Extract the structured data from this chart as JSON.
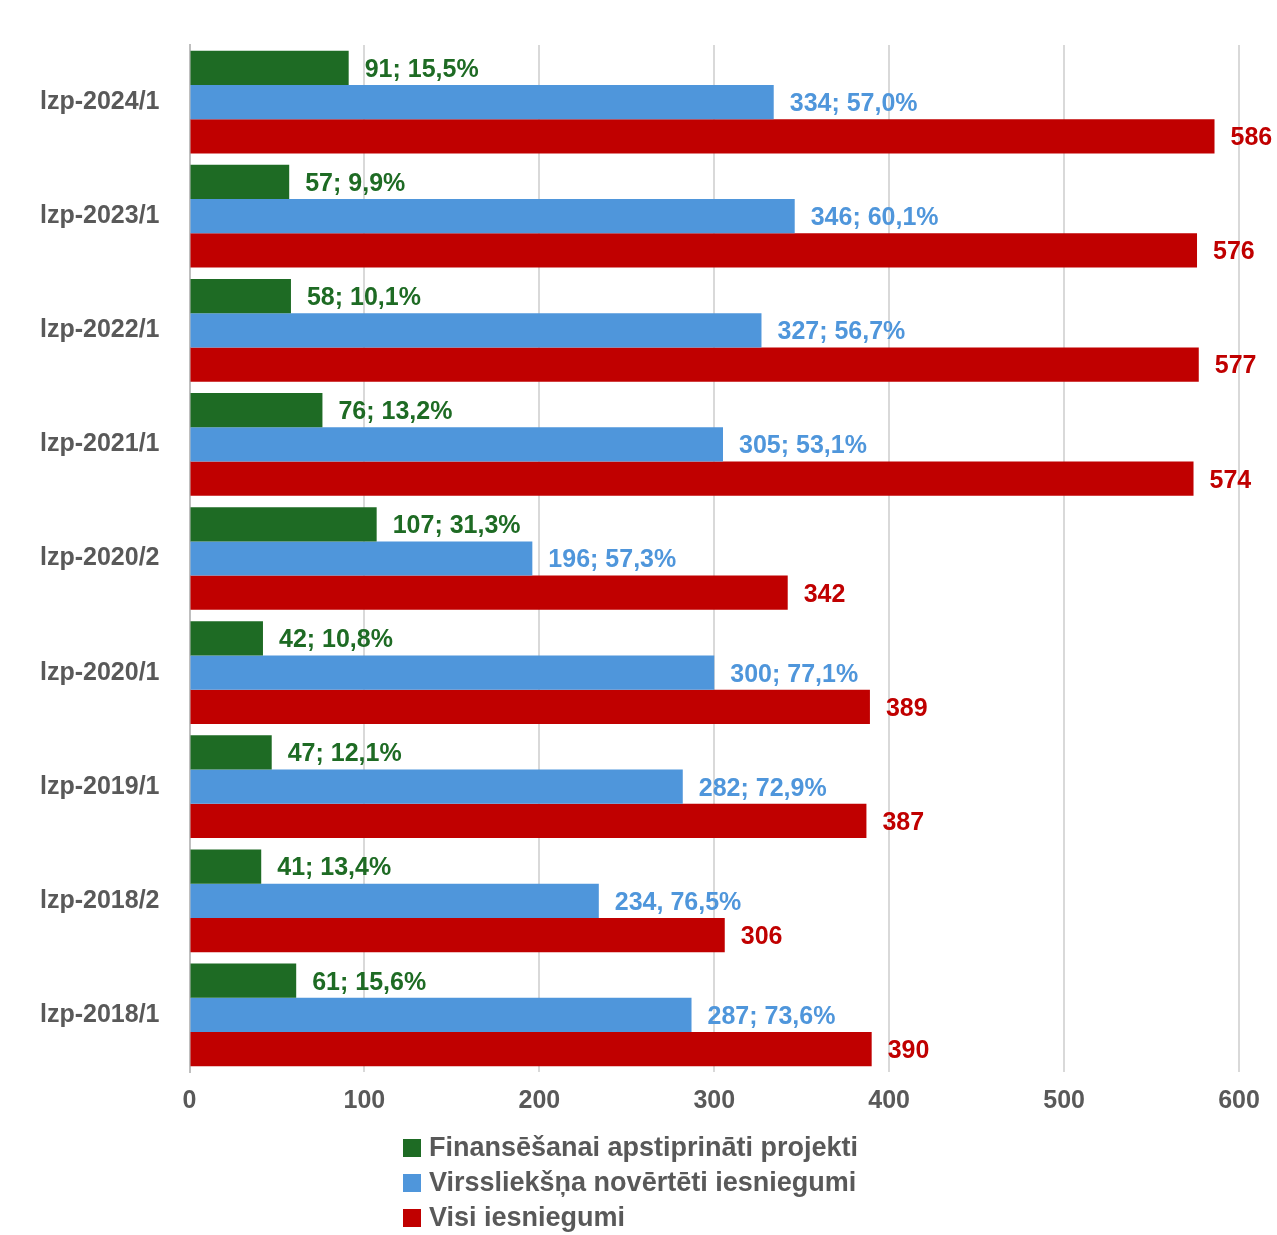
{
  "chart_data": {
    "type": "bar",
    "orientation": "horizontal",
    "categories": [
      "lzp-2024/1",
      "lzp-2023/1",
      "lzp-2022/1",
      "lzp-2021/1",
      "lzp-2020/2",
      "lzp-2020/1",
      "lzp-2019/1",
      "lzp-2018/2",
      "lzp-2018/1"
    ],
    "series": [
      {
        "name": "Finansēšanai apstiprināti projekti",
        "color": "#1e6b24",
        "values": [
          91,
          57,
          58,
          76,
          107,
          42,
          47,
          41,
          61
        ],
        "value_labels": [
          "91; 15,5%",
          "57; 9,9%",
          "58; 10,1%",
          "76; 13,2%",
          "107; 31,3%",
          "42; 10,8%",
          "47; 12,1%",
          "41; 13,4%",
          "61; 15,6%"
        ]
      },
      {
        "name": "Virssliekšņa novērtēti iesniegumi",
        "color": "#4f96db",
        "values": [
          334,
          346,
          327,
          305,
          196,
          300,
          282,
          234,
          287
        ],
        "value_labels": [
          "334; 57,0%",
          "346; 60,1%",
          "327; 56,7%",
          "305; 53,1%",
          "196; 57,3%",
          "300; 77,1%",
          "282; 72,9%",
          "234, 76,5%",
          "287; 73,6%"
        ]
      },
      {
        "name": "Visi iesniegumi",
        "color": "#c00000",
        "values": [
          586,
          576,
          577,
          574,
          342,
          389,
          387,
          306,
          390
        ],
        "value_labels": [
          "586",
          "576",
          "577",
          "574",
          "342",
          "389",
          "387",
          "306",
          "390"
        ]
      }
    ],
    "xlim": [
      0,
      600
    ],
    "xticks": [
      0,
      100,
      200,
      300,
      400,
      500,
      600
    ],
    "grid": "x",
    "legend": "bottom"
  }
}
